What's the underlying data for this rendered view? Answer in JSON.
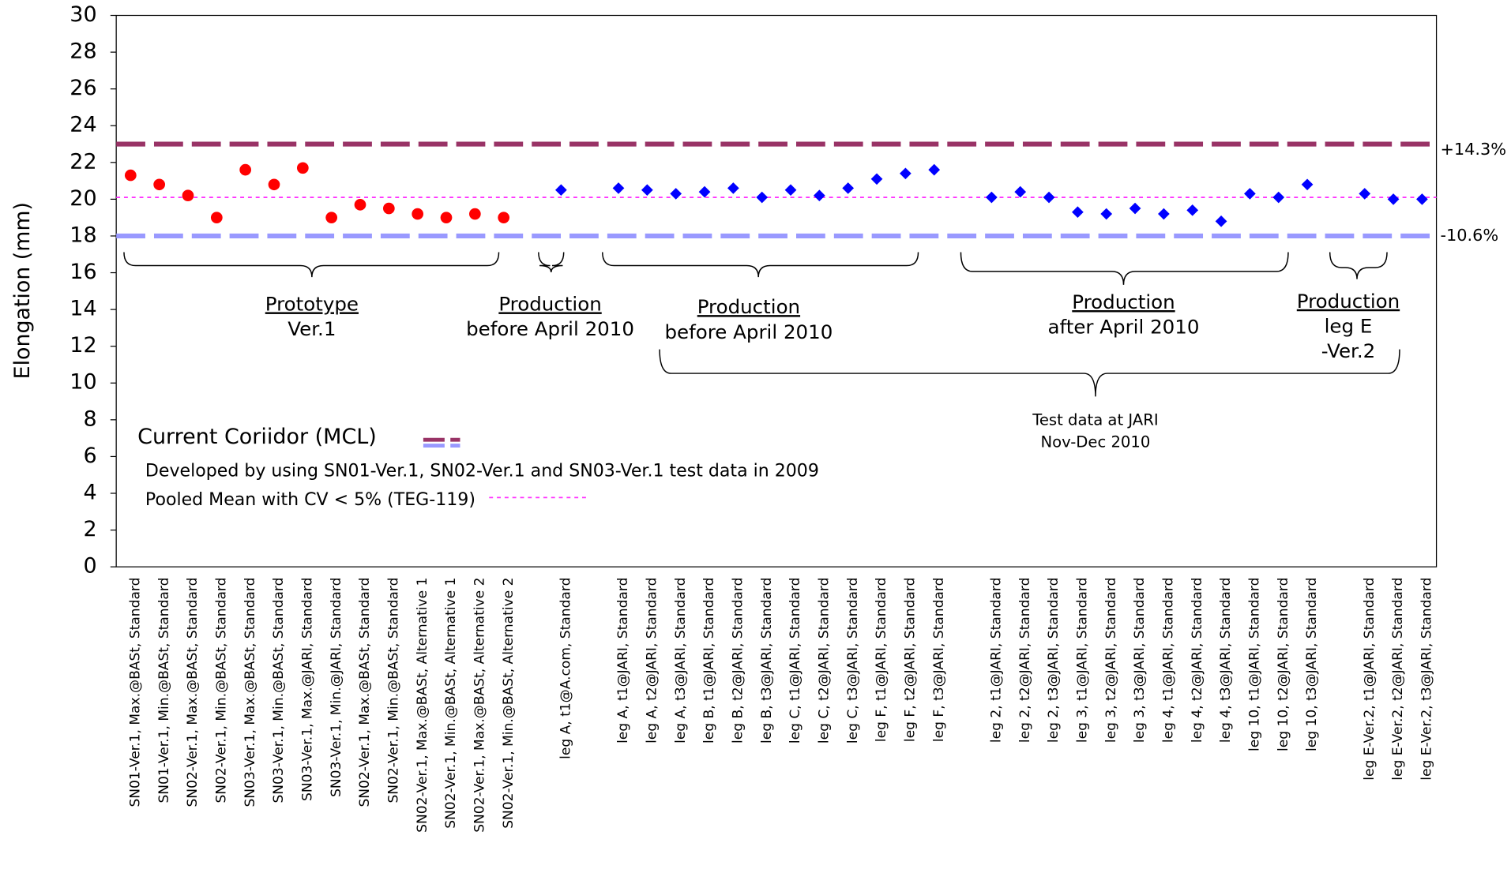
{
  "chart_data": {
    "type": "scatter",
    "y_label": "Elongation (mm)",
    "ylim": [
      0,
      30
    ],
    "yticks": [
      0,
      2,
      4,
      6,
      8,
      10,
      12,
      14,
      16,
      18,
      20,
      22,
      24,
      26,
      28,
      30
    ],
    "categories": [
      "SN01-Ver.1, Max.@BASt, Standard",
      "SN01-Ver.1,  Min.@BASt, Standard",
      "SN02-Ver.1, Max.@BASt, Standard",
      "SN02-Ver.1,  Min.@BASt, Standard",
      "SN03-Ver.1, Max.@BASt, Standard",
      "SN03-Ver.1,  Min.@BASt, Standard",
      "SN03-Ver.1, Max.@JARI, Standard",
      "SN03-Ver.1,  Min.@JARI, Standard",
      "SN02-Ver.1, Max.@BASt, Standard",
      "SN02-Ver.1,  Min.@BASt, Standard",
      "SN02-Ver.1, Max.@BASt, Alternative 1",
      "SN02-Ver.1,  Min.@BASt, Alternative 1",
      "SN02-Ver.1, Max.@BASt, Alternative 2",
      "SN02-Ver.1,  Min.@BASt, Alternative 2",
      null,
      "leg A, t1@A.com, Standard",
      null,
      "leg A, t1@JARI, Standard",
      "leg A, t2@JARI, Standard",
      "leg A, t3@JARI, Standard",
      "leg B, t1@JARI, Standard",
      "leg B, t2@JARI, Standard",
      "leg B, t3@JARI, Standard",
      "leg C, t1@JARI, Standard",
      "leg C, t2@JARI, Standard",
      "leg C, t3@JARI, Standard",
      "leg F, t1@JARI, Standard",
      "leg F, t2@JARI, Standard",
      "leg F, t3@JARI, Standard",
      null,
      "leg 2, t1@JARI, Standard",
      "leg 2, t2@JARI, Standard",
      "leg 2, t3@JARI, Standard",
      "leg 3, t1@JARI, Standard",
      "leg 3, t2@JARI, Standard",
      "leg 3, t3@JARI, Standard",
      "leg 4, t1@JARI, Standard",
      "leg 4, t2@JARI, Standard",
      "leg 4, t3@JARI, Standard",
      "leg 10, t1@JARI, Standard",
      "leg 10, t2@JARI, Standard",
      "leg 10, t3@JARI, Standard",
      null,
      "leg E-Ver.2, t1@JARI, Standard",
      "leg E-Ver.2, t2@JARI, Standard",
      "leg E-Ver.2, t3@JARI, Standard"
    ],
    "series": [
      {
        "color": "#ff0000",
        "marker": "circle",
        "values": [
          21.3,
          20.8,
          20.2,
          19.0,
          21.6,
          20.8,
          21.7,
          19.0,
          19.7,
          19.5,
          19.2,
          19.0,
          19.2,
          19.0,
          null,
          null,
          null,
          null,
          null,
          null,
          null,
          null,
          null,
          null,
          null,
          null,
          null,
          null,
          null,
          null,
          null,
          null,
          null,
          null,
          null,
          null,
          null,
          null,
          null,
          null,
          null,
          null,
          null,
          null,
          null,
          null
        ]
      },
      {
        "color": "#0000ff",
        "marker": "diamond",
        "values": [
          null,
          null,
          null,
          null,
          null,
          null,
          null,
          null,
          null,
          null,
          null,
          null,
          null,
          null,
          null,
          20.5,
          null,
          20.6,
          20.5,
          20.3,
          20.4,
          20.6,
          20.1,
          20.5,
          20.2,
          20.6,
          21.1,
          21.4,
          21.6,
          null,
          20.1,
          20.4,
          20.1,
          19.3,
          19.2,
          19.5,
          19.2,
          19.4,
          18.8,
          20.3,
          20.1,
          20.8,
          null,
          20.3,
          20.0,
          20.0
        ]
      }
    ],
    "reference_lines": [
      {
        "value": 23.0,
        "color": "#993366",
        "style": "dashed",
        "label": "+14.3%"
      },
      {
        "value": 18.0,
        "color": "#9999ff",
        "style": "dashed",
        "label": "-10.6%"
      },
      {
        "value": 20.1,
        "color": "#ff33ff",
        "style": "dotted"
      }
    ],
    "annotations": [
      {
        "lines": [
          "Prototype",
          "Ver.1"
        ]
      },
      {
        "lines": [
          "Production",
          "before April 2010"
        ]
      },
      {
        "lines": [
          "Production",
          "before April 2010"
        ]
      },
      {
        "lines": [
          "Production",
          "after April 2010"
        ]
      },
      {
        "lines": [
          "Production",
          "leg E",
          "-Ver.2"
        ]
      },
      {
        "lines": [
          "Test data at JARI",
          "Nov-Dec 2010"
        ]
      }
    ],
    "legend": [
      "Current Coriidor (MCL)",
      "Developed by using SN01-Ver.1, SN02-Ver.1 and SN03-Ver.1 test data in 2009",
      "Pooled Mean with CV < 5% (TEG-119)"
    ]
  }
}
